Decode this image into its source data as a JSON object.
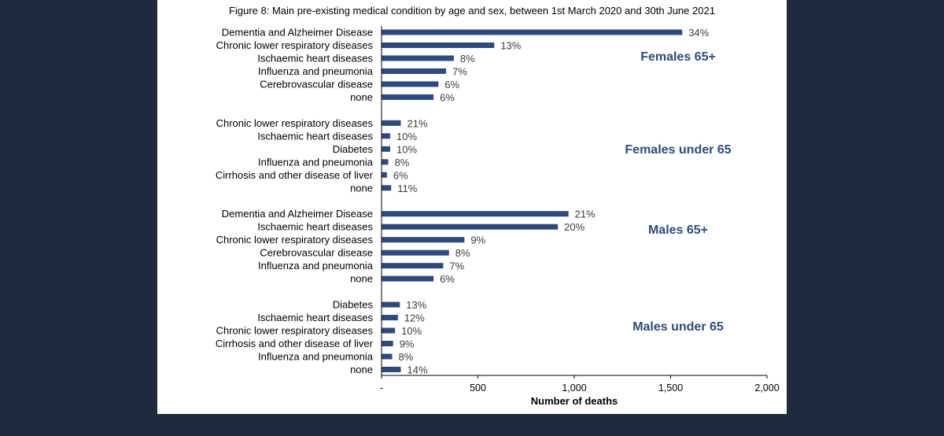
{
  "chart_data": {
    "type": "bar",
    "orientation": "horizontal",
    "title": "Figure 8: Main pre-existing medical condition by age and sex, between 1st March 2020 and 30th June 2021",
    "xlabel": "Number of deaths",
    "ylabel": "",
    "xlim": [
      0,
      2000
    ],
    "x_ticks": [
      "-",
      "500",
      "1,000",
      "1,500",
      "2,000"
    ],
    "x_tick_values": [
      0,
      500,
      1000,
      1500,
      2000
    ],
    "bar_color": "#2e4a7d",
    "groups": [
      {
        "name": "Females 65+",
        "bars": [
          {
            "category": "Dementia and Alzheimer Disease",
            "value": 1560,
            "label": "34%"
          },
          {
            "category": "Chronic lower respiratory diseases",
            "value": 585,
            "label": "13%"
          },
          {
            "category": "Ischaemic heart diseases",
            "value": 375,
            "label": "8%"
          },
          {
            "category": "Influenza and pneumonia",
            "value": 335,
            "label": "7%"
          },
          {
            "category": "Cerebrovascular disease",
            "value": 295,
            "label": "6%"
          },
          {
            "category": "none",
            "value": 270,
            "label": "6%"
          }
        ]
      },
      {
        "name": "Females under 65",
        "bars": [
          {
            "category": "Chronic lower respiratory diseases",
            "value": 100,
            "label": "21%"
          },
          {
            "category": "Ischaemic heart diseases",
            "value": 45,
            "label": "10%"
          },
          {
            "category": "Diabetes",
            "value": 45,
            "label": "10%"
          },
          {
            "category": "Influenza and pneumonia",
            "value": 35,
            "label": "8%"
          },
          {
            "category": "Cirrhosis and other disease of liver",
            "value": 28,
            "label": "6%"
          },
          {
            "category": "none",
            "value": 50,
            "label": "11%"
          }
        ]
      },
      {
        "name": "Males 65+",
        "bars": [
          {
            "category": "Dementia and Alzheimer Disease",
            "value": 970,
            "label": "21%"
          },
          {
            "category": "Ischaemic heart diseases",
            "value": 915,
            "label": "20%"
          },
          {
            "category": "Chronic lower respiratory diseases",
            "value": 430,
            "label": "9%"
          },
          {
            "category": "Cerebrovascular disease",
            "value": 350,
            "label": "8%"
          },
          {
            "category": "Influenza and pneumonia",
            "value": 320,
            "label": "7%"
          },
          {
            "category": "none",
            "value": 270,
            "label": "6%"
          }
        ]
      },
      {
        "name": "Males under 65",
        "bars": [
          {
            "category": "Diabetes",
            "value": 95,
            "label": "13%"
          },
          {
            "category": "Ischaemic heart diseases",
            "value": 85,
            "label": "12%"
          },
          {
            "category": "Chronic lower respiratory diseases",
            "value": 70,
            "label": "10%"
          },
          {
            "category": "Cirrhosis and other disease of liver",
            "value": 60,
            "label": "9%"
          },
          {
            "category": "Influenza and pneumonia",
            "value": 55,
            "label": "8%"
          },
          {
            "category": "none",
            "value": 100,
            "label": "14%"
          }
        ]
      }
    ]
  }
}
